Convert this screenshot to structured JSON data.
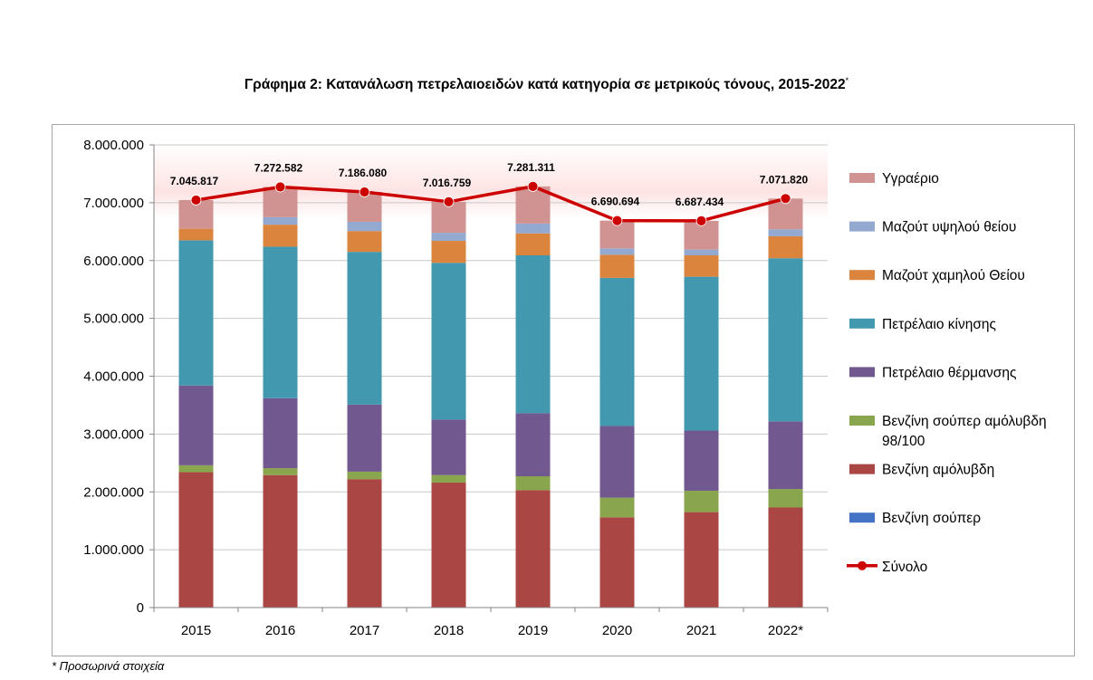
{
  "chart_data": {
    "type": "bar",
    "stacked": true,
    "title": "Γράφημα 2: Κατανάλωση πετρελαιοειδών κατά κατηγορία σε μετρικούς τόνους, 2015-2022",
    "title_mark": "*",
    "categories": [
      "2015",
      "2016",
      "2017",
      "2018",
      "2019",
      "2020",
      "2021",
      "2022*"
    ],
    "ylim": [
      0,
      8000000
    ],
    "yticks": [
      {
        "value": 0,
        "label": "0"
      },
      {
        "value": 1000000,
        "label": "1.000.000"
      },
      {
        "value": 2000000,
        "label": "2.000.000"
      },
      {
        "value": 3000000,
        "label": "3.000.000"
      },
      {
        "value": 4000000,
        "label": "4.000.000"
      },
      {
        "value": 5000000,
        "label": "5.000.000"
      },
      {
        "value": 6000000,
        "label": "6.000.000"
      },
      {
        "value": 7000000,
        "label": "7.000.000"
      },
      {
        "value": 8000000,
        "label": "8.000.000"
      }
    ],
    "grid": true,
    "legend_position": "right",
    "series": [
      {
        "name": "Βενζίνη σούπερ",
        "color": "#4472c4",
        "values": [
          0,
          0,
          0,
          0,
          0,
          0,
          0,
          0
        ]
      },
      {
        "name": "Βενζίνη αμόλυβδη",
        "color": "#aa4643",
        "values": [
          2340000,
          2290000,
          2220000,
          2160000,
          2030000,
          1560000,
          1650000,
          1730000
        ]
      },
      {
        "name": "Βενζίνη σούπερ αμόλυβδη 98/100",
        "color": "#89a54e",
        "values": [
          120000,
          120000,
          130000,
          130000,
          240000,
          340000,
          370000,
          320000
        ]
      },
      {
        "name": "Πετρέλαιο θέρμανσης",
        "color": "#71588f",
        "values": [
          1380000,
          1210000,
          1160000,
          960000,
          1090000,
          1240000,
          1040000,
          1170000
        ]
      },
      {
        "name": "Πετρέλαιο κίνησης",
        "color": "#4198af",
        "values": [
          2510000,
          2620000,
          2640000,
          2710000,
          2730000,
          2560000,
          2660000,
          2820000
        ]
      },
      {
        "name": "Μαζούτ χαμηλού Θείου",
        "color": "#db843d",
        "values": [
          200000,
          380000,
          360000,
          380000,
          380000,
          400000,
          370000,
          380000
        ]
      },
      {
        "name": "Μαζούτ υψηλού θείου",
        "color": "#93a9cf",
        "values": [
          0,
          130000,
          160000,
          140000,
          170000,
          110000,
          100000,
          120000
        ]
      },
      {
        "name": "Υγραέριο",
        "color": "#d19392",
        "values": [
          495817,
          522582,
          516080,
          536759,
          641311,
          480694,
          497434,
          531820
        ]
      }
    ],
    "line": {
      "name": "Σύνολο",
      "color": "#cc0000",
      "values": [
        7045817,
        7272582,
        7186080,
        7016759,
        7281311,
        6690694,
        6687434,
        7071820
      ],
      "labels": [
        "7.045.817",
        "7.272.582",
        "7.186.080",
        "7.016.759",
        "7.281.311",
        "6.690.694",
        "6.687.434",
        "7.071.820"
      ]
    },
    "legend_order": [
      "Υγραέριο",
      "Μαζούτ υψηλού θείου",
      "Μαζούτ χαμηλού Θείου",
      "Πετρέλαιο κίνησης",
      "Πετρέλαιο θέρμανσης",
      "Βενζίνη σούπερ αμόλυβδη 98/100",
      "Βενζίνη αμόλυβδη",
      "Βενζίνη σούπερ",
      "Σύνολο"
    ]
  },
  "footnote": "* Προσωρινά στοιχεία"
}
